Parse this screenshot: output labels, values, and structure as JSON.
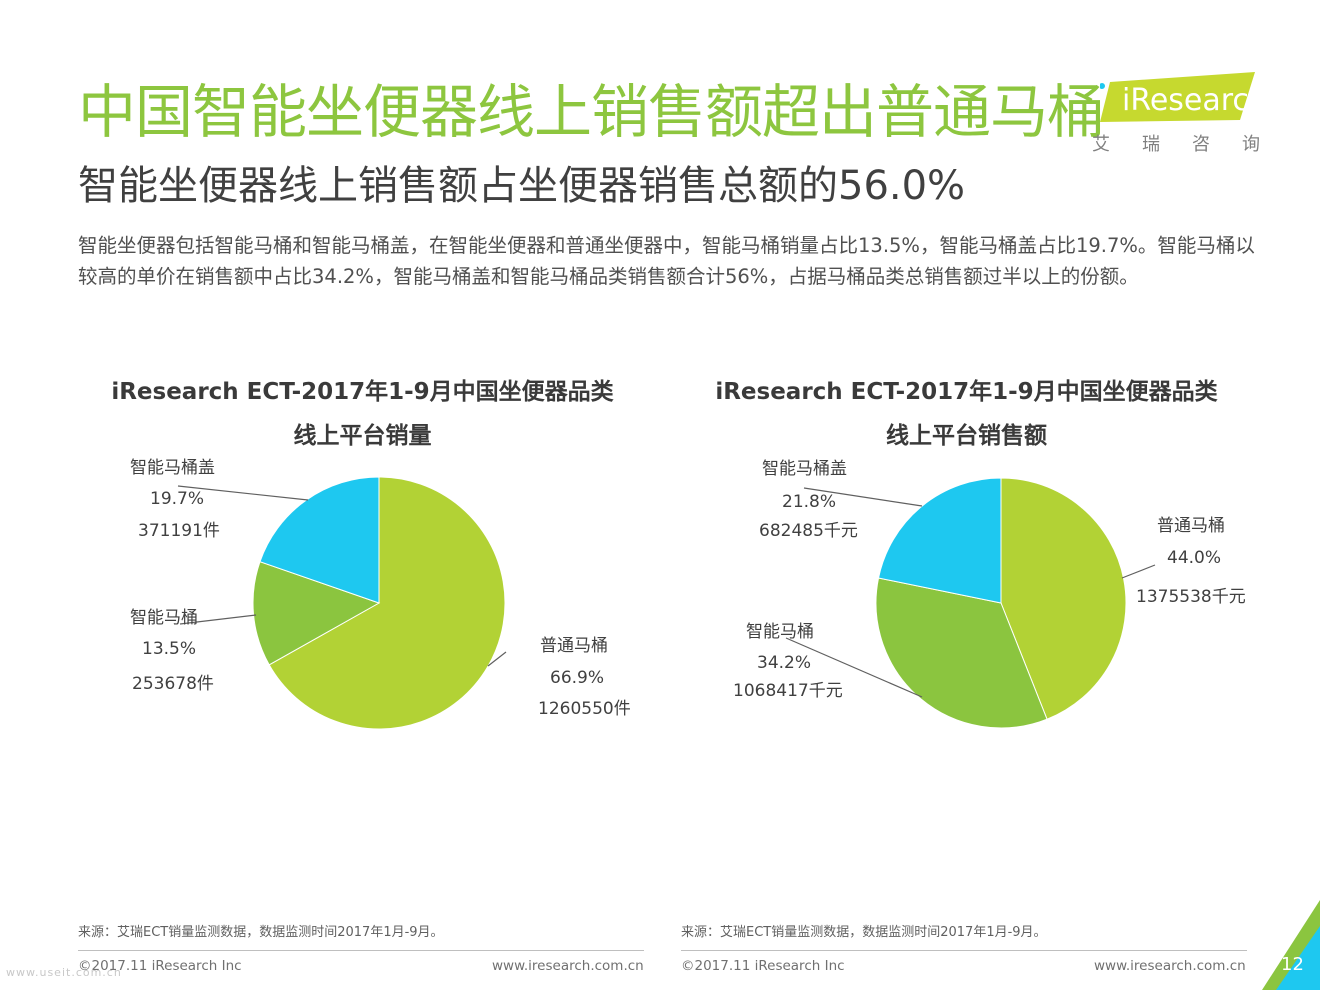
{
  "header": {
    "title": "中国智能坐便器线上销售额超出普通马桶",
    "subtitle": "智能坐便器线上销售额占坐便器销售总额的56.0%",
    "intro": "智能坐便器包括智能马桶和智能马桶盖，在智能坐便器和普通坐便器中，智能马桶销量占比13.5%，智能马桶盖占比19.7%。智能马桶以较高的单价在销售额中占比34.2%，智能马桶盖和智能马桶品类销售额合计56%，占据马桶品类总销售额过半以上的份额。"
  },
  "logo": {
    "wordmark": "iResearch",
    "cn": "艾瑞咨询",
    "brand_color": "#c6d92f"
  },
  "colors": {
    "green_title": "#8dc63f",
    "slice_putong": "#b2d235",
    "slice_zhinengmatong": "#8bc53f",
    "slice_matonggai": "#1ec8f0"
  },
  "chart_data": [
    {
      "type": "pie",
      "title_line1": "iResearch ECT-2017年1-9月中国坐便器品类",
      "title_line2": "线上平台销量",
      "slices": [
        {
          "name": "普通马桶",
          "percent_label": "66.9%",
          "value_label": "1260550件",
          "value": 66.9,
          "color": "#b2d235"
        },
        {
          "name": "智能马桶",
          "percent_label": "13.5%",
          "value_label": "253678件",
          "value": 13.5,
          "color": "#8bc53f"
        },
        {
          "name": "智能马桶盖",
          "percent_label": "19.7%",
          "value_label": "371191件",
          "value": 19.7,
          "color": "#1ec8f0"
        }
      ]
    },
    {
      "type": "pie",
      "title_line1": "iResearch ECT-2017年1-9月中国坐便器品类",
      "title_line2": "线上平台销售额",
      "slices": [
        {
          "name": "普通马桶",
          "percent_label": "44.0%",
          "value_label": "1375538千元",
          "value": 44.0,
          "color": "#b2d235"
        },
        {
          "name": "智能马桶",
          "percent_label": "34.2%",
          "value_label": "1068417千元",
          "value": 34.2,
          "color": "#8bc53f"
        },
        {
          "name": "智能马桶盖",
          "percent_label": "21.8%",
          "value_label": "682485千元",
          "value": 21.8,
          "color": "#1ec8f0"
        }
      ]
    }
  ],
  "footer": {
    "source_left": "来源：艾瑞ECT销量监测数据，数据监测时间2017年1月-9月。",
    "source_right": "来源：艾瑞ECT销量监测数据，数据监测时间2017年1月-9月。",
    "copyright_left": "©2017.11 iResearch Inc",
    "url_left": "www.iresearch.com.cn",
    "copyright_right": "©2017.11 iResearch Inc",
    "url_right": "www.iresearch.com.cn",
    "page_number": "12",
    "watermark": "www.useit.com.cn"
  }
}
